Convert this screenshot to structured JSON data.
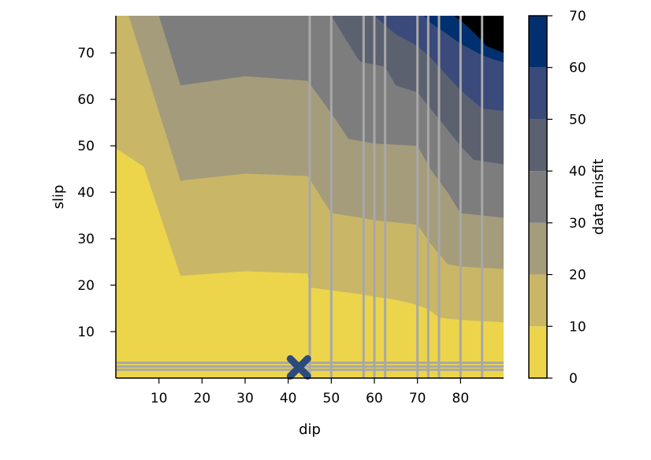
{
  "chart_data": {
    "type": "contour",
    "xlabel": "dip",
    "ylabel": "slip",
    "xlim": [
      0,
      90
    ],
    "ylim": [
      0,
      78
    ],
    "x_ticks": [
      10,
      20,
      30,
      40,
      50,
      60,
      70,
      80
    ],
    "y_ticks": [
      10,
      20,
      30,
      40,
      50,
      60,
      70
    ],
    "colorbar": {
      "label": "data misfit",
      "ticks": [
        0,
        10,
        20,
        30,
        40,
        50,
        60,
        70
      ],
      "levels": [
        0,
        10,
        20,
        30,
        40,
        50,
        60,
        70
      ],
      "colors": [
        "#ecd54b",
        "#c9b767",
        "#a59c7b",
        "#7d7d7d",
        "#5c6170",
        "#3a4a7a",
        "#00306f"
      ]
    },
    "contour_boundaries": [
      {
        "level": 10,
        "points": [
          [
            0,
            49.5
          ],
          [
            6.5,
            45.5
          ],
          [
            15,
            22
          ],
          [
            30,
            23
          ],
          [
            44.5,
            22.5
          ],
          [
            45,
            19.5
          ],
          [
            57,
            18
          ],
          [
            60,
            17.5
          ],
          [
            64,
            17
          ],
          [
            69,
            16
          ],
          [
            72,
            15
          ],
          [
            73,
            14.5
          ],
          [
            75,
            13
          ],
          [
            80,
            12.5
          ],
          [
            90,
            12
          ]
        ]
      },
      {
        "level": 20,
        "points": [
          [
            3,
            78
          ],
          [
            15,
            42.5
          ],
          [
            30,
            44
          ],
          [
            44.5,
            43.5
          ],
          [
            50,
            35.5
          ],
          [
            57,
            34.5
          ],
          [
            60,
            34
          ],
          [
            70,
            33
          ],
          [
            73,
            29
          ],
          [
            77,
            24.5
          ],
          [
            80,
            24
          ],
          [
            90,
            23.5
          ]
        ]
      },
      {
        "level": 30,
        "points": [
          [
            10,
            78
          ],
          [
            15,
            63
          ],
          [
            30,
            65
          ],
          [
            44.5,
            64
          ],
          [
            50,
            57
          ],
          [
            54,
            51.5
          ],
          [
            57,
            51
          ],
          [
            60,
            50.5
          ],
          [
            70,
            50
          ],
          [
            73,
            45
          ],
          [
            77,
            40
          ],
          [
            80,
            35.5
          ],
          [
            90,
            34.5
          ]
        ]
      },
      {
        "level": 40,
        "points": [
          [
            50,
            78
          ],
          [
            56,
            69
          ],
          [
            57,
            68
          ],
          [
            60,
            67.5
          ],
          [
            62.5,
            67
          ],
          [
            65,
            63
          ],
          [
            70,
            61.5
          ],
          [
            73,
            58
          ],
          [
            80,
            50
          ],
          [
            83,
            47
          ],
          [
            90,
            46
          ]
        ]
      },
      {
        "level": 50,
        "points": [
          [
            58,
            78
          ],
          [
            60,
            78
          ],
          [
            65,
            74
          ],
          [
            70,
            71.5
          ],
          [
            73,
            69
          ],
          [
            80,
            62
          ],
          [
            85,
            58
          ],
          [
            90,
            57.5
          ]
        ]
      },
      {
        "level": 60,
        "points": [
          [
            70,
            78
          ],
          [
            71.5,
            78
          ],
          [
            73,
            76.5
          ],
          [
            77,
            74
          ],
          [
            80,
            72
          ],
          [
            85,
            69.5
          ],
          [
            88,
            68.5
          ],
          [
            90,
            68
          ]
        ]
      },
      {
        "level": 70,
        "points": [
          [
            78.5,
            78
          ],
          [
            80,
            77
          ],
          [
            83,
            74.5
          ],
          [
            86,
            71.5
          ],
          [
            90,
            70
          ]
        ]
      }
    ],
    "vertical_lines_x": [
      45,
      50,
      57.5,
      60,
      62.5,
      70,
      72.5,
      75,
      80,
      85
    ],
    "horizontal_lines_y": [
      2.5,
      3.3,
      1.8
    ],
    "marker": {
      "x": 42.5,
      "y": 2.3,
      "symbol": "X",
      "color": "#2c4a7c"
    },
    "line_color": "#a8a8a8"
  }
}
